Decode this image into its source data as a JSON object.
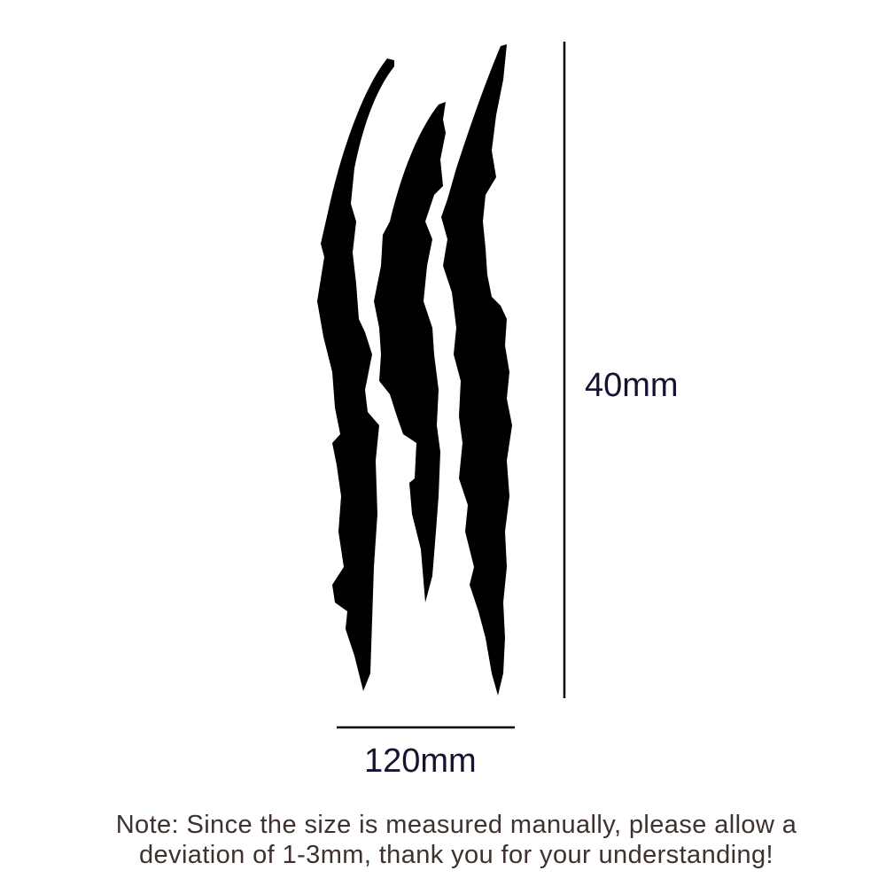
{
  "dimensions": {
    "height_label": "40mm",
    "width_label": "120mm"
  },
  "note": {
    "line1": "Note: Since the size is measured manually, please allow a",
    "line2": "deviation of 1-3mm, thank you for your understanding!"
  },
  "colors": {
    "claw": "#000000",
    "dimension_text": "#141432",
    "note_text": "#40302e"
  }
}
